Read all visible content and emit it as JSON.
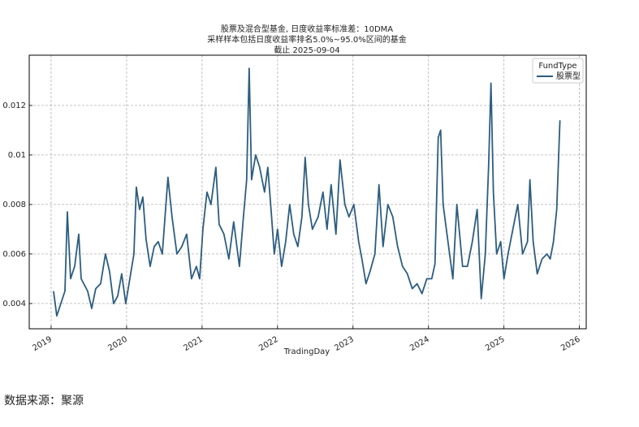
{
  "chart_data": {
    "type": "line",
    "title": "股票及混合型基金, 日度收益率标准差：10DMA",
    "subtitle": "采样样本包括日度收益率排名5.0%~95.0%区间的基金",
    "date_note": "截止 2025-09-04",
    "xlabel": "TradingDay",
    "legend_title": "FundType",
    "legend": "upper right",
    "grid": true,
    "source": "数据来源：聚源",
    "xlim": [
      2018.71,
      2026.09
    ],
    "xticks": [
      2019,
      2020,
      2021,
      2022,
      2023,
      2024,
      2025,
      2026
    ],
    "ylim": [
      0.00298,
      0.01403
    ],
    "yticks": [
      0.004,
      0.006,
      0.008,
      0.01,
      0.012
    ],
    "x": [
      2019.032,
      2019.075,
      2019.129,
      2019.183,
      2019.215,
      2019.258,
      2019.312,
      2019.366,
      2019.398,
      2019.484,
      2019.538,
      2019.591,
      2019.656,
      2019.72,
      2019.774,
      2019.828,
      2019.882,
      2019.935,
      2019.989,
      2020.043,
      2020.097,
      2020.129,
      2020.172,
      2020.215,
      2020.258,
      2020.312,
      2020.366,
      2020.419,
      2020.473,
      2020.548,
      2020.602,
      2020.667,
      2020.731,
      2020.796,
      2020.86,
      2020.925,
      2020.968,
      2021.011,
      2021.065,
      2021.118,
      2021.183,
      2021.226,
      2021.29,
      2021.355,
      2021.419,
      2021.495,
      2021.548,
      2021.591,
      2021.624,
      2021.656,
      2021.71,
      2021.763,
      2021.828,
      2021.871,
      2021.914,
      2021.957,
      2022.0,
      2022.054,
      2022.108,
      2022.161,
      2022.215,
      2022.269,
      2022.323,
      2022.366,
      2022.409,
      2022.462,
      2022.538,
      2022.602,
      2022.656,
      2022.71,
      2022.774,
      2022.828,
      2022.892,
      2022.946,
      2023.011,
      2023.075,
      2023.118,
      2023.172,
      2023.226,
      2023.29,
      2023.344,
      2023.398,
      2023.462,
      2023.527,
      2023.591,
      2023.656,
      2023.72,
      2023.785,
      2023.849,
      2023.914,
      2023.978,
      2024.043,
      2024.086,
      2024.129,
      2024.161,
      2024.194,
      2024.258,
      2024.323,
      2024.376,
      2024.452,
      2024.516,
      2024.581,
      2024.645,
      2024.699,
      2024.753,
      2024.796,
      2024.828,
      2024.86,
      2024.903,
      2024.957,
      2025.0,
      2025.054,
      2025.118,
      2025.183,
      2025.247,
      2025.312,
      2025.344,
      2025.387,
      2025.441,
      2025.505,
      2025.57,
      2025.613,
      2025.656,
      2025.699,
      2025.731,
      2025.742
    ],
    "series": [
      {
        "name": "股票型",
        "color": "#2c5d80",
        "values": [
          0.0045,
          0.0035,
          0.004,
          0.0045,
          0.0077,
          0.005,
          0.0055,
          0.0068,
          0.005,
          0.0045,
          0.0038,
          0.0046,
          0.0048,
          0.006,
          0.0053,
          0.004,
          0.0043,
          0.0052,
          0.004,
          0.005,
          0.006,
          0.0087,
          0.0078,
          0.0083,
          0.0066,
          0.0055,
          0.0063,
          0.0065,
          0.006,
          0.0091,
          0.0075,
          0.006,
          0.0063,
          0.0068,
          0.005,
          0.0055,
          0.005,
          0.007,
          0.0085,
          0.008,
          0.0095,
          0.0072,
          0.0068,
          0.0058,
          0.0073,
          0.0055,
          0.0075,
          0.009,
          0.0135,
          0.009,
          0.01,
          0.0095,
          0.0085,
          0.0095,
          0.0078,
          0.006,
          0.007,
          0.0055,
          0.0065,
          0.008,
          0.0068,
          0.0063,
          0.0075,
          0.0099,
          0.008,
          0.007,
          0.0075,
          0.0085,
          0.007,
          0.0088,
          0.0068,
          0.0098,
          0.008,
          0.0075,
          0.008,
          0.0065,
          0.0058,
          0.0048,
          0.0053,
          0.006,
          0.0088,
          0.0063,
          0.008,
          0.0075,
          0.0063,
          0.0055,
          0.0052,
          0.0046,
          0.0048,
          0.0044,
          0.005,
          0.005,
          0.0056,
          0.0107,
          0.011,
          0.008,
          0.0065,
          0.005,
          0.008,
          0.0055,
          0.0055,
          0.0065,
          0.0078,
          0.0042,
          0.006,
          0.0095,
          0.0129,
          0.0085,
          0.006,
          0.0065,
          0.005,
          0.006,
          0.007,
          0.008,
          0.006,
          0.0065,
          0.009,
          0.0065,
          0.0052,
          0.0058,
          0.006,
          0.0058,
          0.0065,
          0.0078,
          0.0105,
          0.0114
        ]
      }
    ]
  }
}
